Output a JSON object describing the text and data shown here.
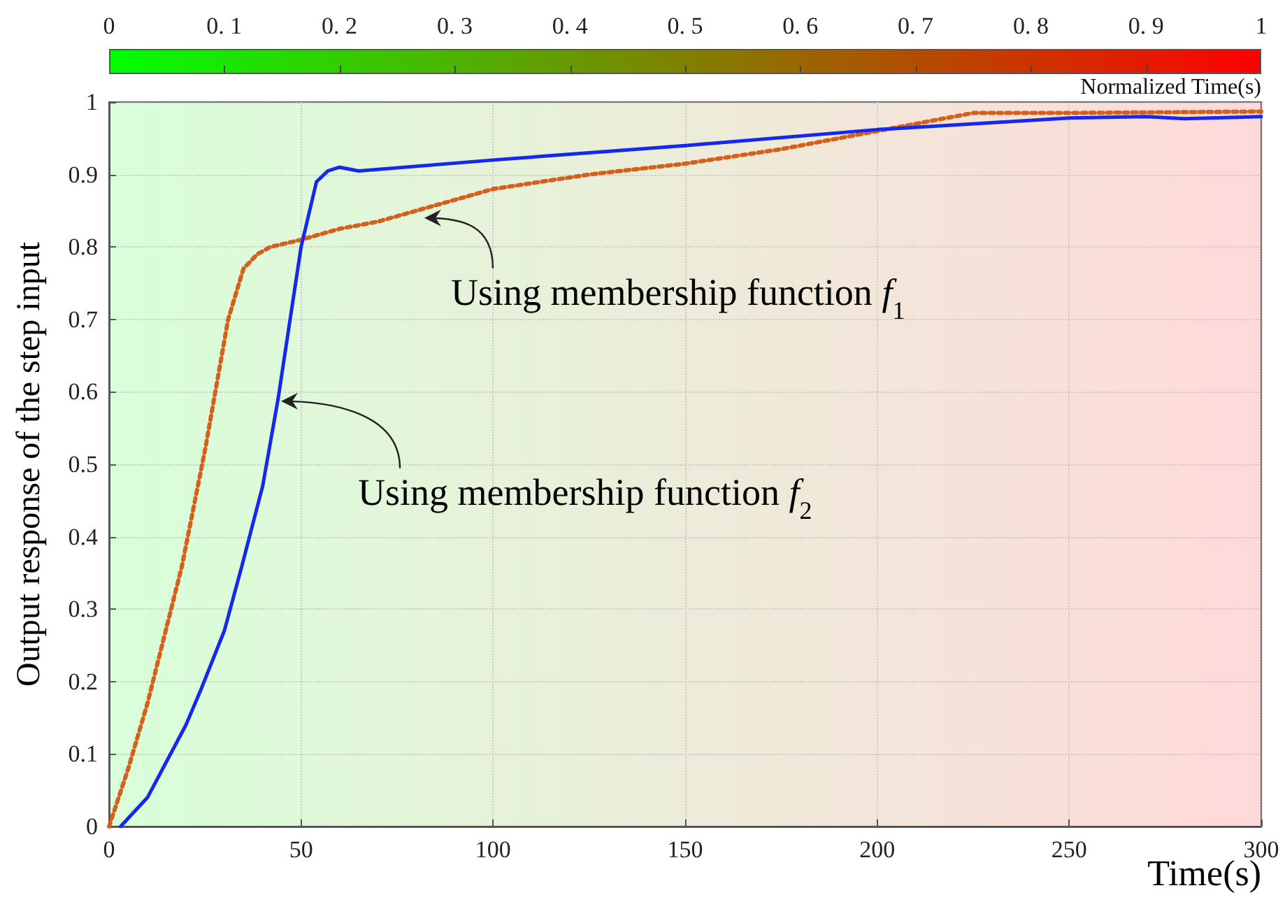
{
  "chart_data": {
    "type": "line",
    "xlabel": "Time(s)",
    "ylabel": "Output response of the step input",
    "clabel": "Normalized Time(s)",
    "clim": [
      0,
      1
    ],
    "cticks": [
      0,
      {
        "value": 0.1,
        "label": "0. 1"
      },
      {
        "value": 0.2,
        "label": "0. 2"
      },
      {
        "value": 0.3,
        "label": "0. 3"
      },
      {
        "value": 0.4,
        "label": "0. 4"
      },
      {
        "value": 0.5,
        "label": "0. 5"
      },
      {
        "value": 0.6,
        "label": "0. 6"
      },
      {
        "value": 0.7,
        "label": "0. 7"
      },
      {
        "value": 0.8,
        "label": "0. 8"
      },
      {
        "value": 0.9,
        "label": "0. 9"
      },
      1
    ],
    "xlim": [
      0,
      300
    ],
    "xticks": [
      0,
      50,
      100,
      150,
      200,
      250,
      300
    ],
    "ylim": [
      0,
      1
    ],
    "yticks": [
      0,
      0.1,
      0.2,
      0.3,
      0.4,
      0.5,
      0.6,
      0.7,
      0.8,
      0.9,
      1
    ],
    "grid": true,
    "marker": "none",
    "series": [
      {
        "color": "#d4601c",
        "line_style": "dotted",
        "x": [
          0,
          5,
          10,
          19,
          25,
          31,
          35,
          38.6,
          42,
          50,
          60,
          70,
          80,
          90,
          100,
          125,
          150,
          175,
          200,
          215,
          225,
          250,
          300
        ],
        "values": [
          0,
          0.08,
          0.17,
          0.36,
          0.52,
          0.7,
          0.77,
          0.79,
          0.8,
          0.81,
          0.825,
          0.835,
          0.85,
          0.865,
          0.88,
          0.9,
          0.915,
          0.935,
          0.96,
          0.975,
          0.985,
          0.985,
          0.987
        ]
      },
      {
        "color": "#1428ee",
        "line_style": "solid",
        "x": [
          3,
          10,
          15,
          20,
          24,
          30,
          34.6,
          40,
          44,
          50,
          54,
          57,
          60,
          65,
          100,
          150,
          200,
          250,
          270,
          280,
          300
        ],
        "values": [
          0,
          0.04,
          0.09,
          0.14,
          0.19,
          0.27,
          0.36,
          0.47,
          0.59,
          0.8,
          0.89,
          0.905,
          0.91,
          0.905,
          0.92,
          0.94,
          0.962,
          0.978,
          0.98,
          0.977,
          0.98
        ]
      }
    ],
    "annotations": [
      {
        "text": "Using membership function f$_{1}$",
        "x": 81,
        "y": 0.84
      },
      {
        "text": "Using membership function f$_{2}$",
        "x": 43.7,
        "y": 0.587
      }
    ]
  }
}
